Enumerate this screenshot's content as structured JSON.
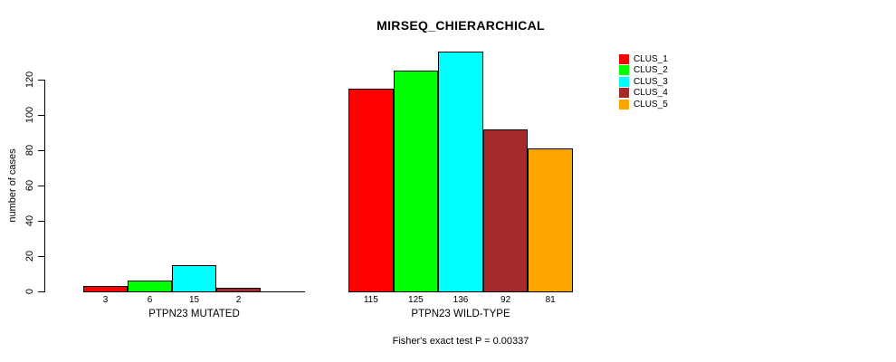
{
  "chart_data": {
    "type": "bar",
    "title": "MIRSEQ_CHIERARCHICAL",
    "ylabel": "number of cases",
    "xlabel": "",
    "ylim": [
      0,
      140
    ],
    "y_ticks": [
      0,
      20,
      40,
      60,
      80,
      100,
      120
    ],
    "grid": false,
    "legend_position": "top-right-outside",
    "series": [
      {
        "name": "CLUS_1",
        "color": "#FF0000"
      },
      {
        "name": "CLUS_2",
        "color": "#00FF00"
      },
      {
        "name": "CLUS_3",
        "color": "#00FFFF"
      },
      {
        "name": "CLUS_4",
        "color": "#A52A2A"
      },
      {
        "name": "CLUS_5",
        "color": "#FFA500"
      }
    ],
    "groups": [
      {
        "label": "PTPN23 MUTATED",
        "values": [
          3,
          6,
          15,
          2,
          0
        ],
        "bar_labels": [
          "3",
          "6",
          "15",
          "2",
          ""
        ]
      },
      {
        "label": "PTPN23 WILD-TYPE",
        "values": [
          115,
          125,
          136,
          92,
          81
        ],
        "bar_labels": [
          "115",
          "125",
          "136",
          "92",
          "81"
        ]
      }
    ],
    "annotation": "Fisher's exact test P = 0.00337"
  }
}
